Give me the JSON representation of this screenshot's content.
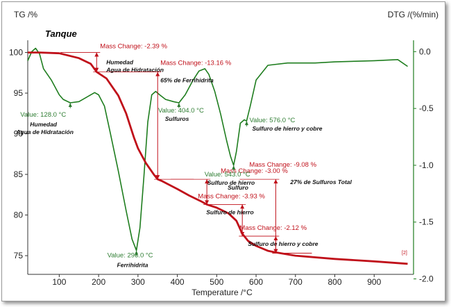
{
  "chart_data": {
    "type": "line",
    "title": "Tanque",
    "xlabel": "Temperature /°C",
    "ylabel_left": "TG /%",
    "ylabel_right": "DTG /(%/min)",
    "xlim": [
      20,
      1000
    ],
    "ylim_left": [
      72.7,
      101.5
    ],
    "ylim_right": [
      -1.96,
      0.1
    ],
    "x_ticks": [
      100,
      200,
      300,
      400,
      500,
      600,
      700,
      800,
      900
    ],
    "y_left_ticks": [
      75,
      80,
      85,
      90,
      95,
      100
    ],
    "y_right_ticks": [
      "0.0",
      "-0.5",
      "-1.0",
      "-1.5",
      "-2.0"
    ],
    "y_right_tick_values": [
      0.0,
      -0.5,
      -1.0,
      -1.5,
      -2.0
    ],
    "grid": false,
    "colors": {
      "tg": "#c0101a",
      "dtg": "#1e7d1e",
      "mass_text": "#c0101a",
      "peak_text": "#2e7d32",
      "axis_right": "#1e7d1e"
    },
    "series": [
      {
        "axis": "left",
        "color": "#c0101a",
        "x": [
          20,
          50,
          100,
          150,
          180,
          195,
          220,
          250,
          270,
          290,
          300,
          320,
          340,
          350,
          360,
          380,
          400,
          430,
          460,
          475,
          500,
          530,
          550,
          565,
          580,
          600,
          630,
          650,
          700,
          800,
          900,
          985
        ],
        "y": [
          100.0,
          100.0,
          99.9,
          99.3,
          98.6,
          97.6,
          96.8,
          94.7,
          92.5,
          89.5,
          88.2,
          86.4,
          85.0,
          84.4,
          84.2,
          83.7,
          83.2,
          82.4,
          81.7,
          81.3,
          80.9,
          80.2,
          79.3,
          77.7,
          76.8,
          76.2,
          75.6,
          75.4,
          75.0,
          74.6,
          74.3,
          74.0
        ]
      },
      {
        "axis": "right",
        "color": "#1e7d1e",
        "x": [
          20,
          30,
          40,
          50,
          60,
          80,
          100,
          110,
          128,
          150,
          170,
          190,
          200,
          215,
          230,
          250,
          270,
          285,
          296,
          305,
          315,
          325,
          335,
          345,
          355,
          370,
          390,
          404,
          420,
          440,
          455,
          470,
          480,
          495,
          510,
          525,
          535,
          543,
          550,
          560,
          570,
          576,
          585,
          600,
          630,
          680,
          750,
          800,
          900,
          960,
          985
        ],
        "y": [
          -0.08,
          0.0,
          0.03,
          -0.02,
          -0.15,
          -0.25,
          -0.38,
          -0.42,
          -0.45,
          -0.44,
          -0.4,
          -0.36,
          -0.38,
          -0.48,
          -0.72,
          -1.05,
          -1.4,
          -1.65,
          -1.75,
          -1.55,
          -1.1,
          -0.62,
          -0.38,
          -0.35,
          -0.38,
          -0.42,
          -0.44,
          -0.45,
          -0.38,
          -0.25,
          -0.17,
          -0.15,
          -0.2,
          -0.35,
          -0.55,
          -0.78,
          -0.92,
          -1.0,
          -0.88,
          -0.63,
          -0.6,
          -0.61,
          -0.48,
          -0.25,
          -0.12,
          -0.1,
          -0.1,
          -0.09,
          -0.08,
          -0.07,
          -0.13
        ]
      }
    ],
    "mass_changes": [
      {
        "text": "Mass Change: -2.39 %",
        "note1": "Humedad",
        "note2": "Agua de Hidratación",
        "x": 195,
        "top": 100.0,
        "bottom": 97.6
      },
      {
        "text": "Mass Change: -13.16 %",
        "note1": "65% de Ferrihidrita",
        "note2": "",
        "x": 350,
        "top": 97.6,
        "bottom": 84.4
      },
      {
        "text": "Mass Change: -3.00 %",
        "note1": "Sulfuro",
        "note2": "",
        "x": 475,
        "top": 84.4,
        "bottom": 81.3
      },
      {
        "text": "Mass Change: -3.93 %",
        "note1": "Sulfuro de hierro",
        "note2": "",
        "x": 565,
        "top": 81.3,
        "bottom": 77.4
      },
      {
        "text": "Mass Change: -2.12 %",
        "note1": "Sulfuro de hierro y cobre",
        "note2": "",
        "x": 650,
        "top": 77.4,
        "bottom": 75.3
      },
      {
        "text": "Mass Change: -9.08 %",
        "note1": "27% de Sulfuros Total",
        "note2": "",
        "x": 650,
        "top": 84.4,
        "bottom": 75.3
      }
    ],
    "peaks": [
      {
        "value": "Value: 128.0 °C",
        "note1": "Humedad",
        "note2": "Agua de Hidratación",
        "x": 128,
        "y": -0.45
      },
      {
        "value": "Value: 296.0 °C",
        "note1": "Ferrihidrita",
        "note2": "",
        "x": 296,
        "y": -1.75
      },
      {
        "value": "Value: 404.0 °C",
        "note1": "Sulfuros",
        "note2": "",
        "x": 404,
        "y": -0.45
      },
      {
        "value": "Value: 543.0 °C",
        "note1": "Sulfuro de hierro",
        "note2": "",
        "x": 543,
        "y": -1.0
      },
      {
        "value": "Value: 576.0 °C",
        "note1": "Sulfuro de hierro y cobre",
        "note2": "",
        "x": 576,
        "y": -0.61
      }
    ],
    "corner_label": "[2]"
  }
}
